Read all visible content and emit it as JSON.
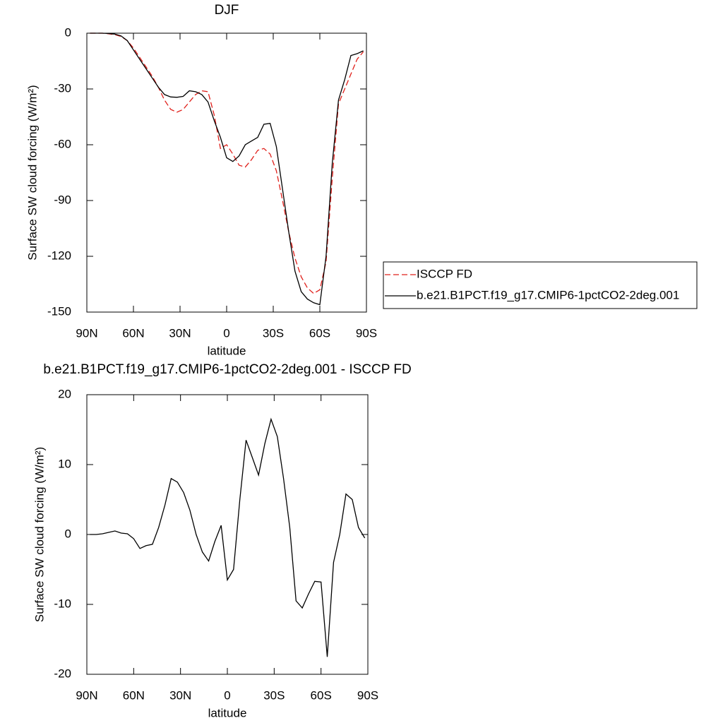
{
  "chart_data": [
    {
      "type": "line",
      "title": "DJF",
      "xlabel": "latitude",
      "ylabel": "Surface SW cloud forcing (W/m²)",
      "x": [
        88,
        84,
        80,
        76,
        72,
        68,
        64,
        60,
        56,
        52,
        48,
        44,
        40,
        36,
        32,
        28,
        24,
        20,
        16,
        12,
        8,
        4,
        0,
        -4,
        -8,
        -12,
        -16,
        -20,
        -24,
        -28,
        -32,
        -36,
        -40,
        -44,
        -48,
        -52,
        -56,
        -60,
        -64,
        -68,
        -72,
        -76,
        -80,
        -84,
        -88
      ],
      "xlim": [
        90,
        -90
      ],
      "xticks": [
        {
          "value": 90,
          "label": "90N"
        },
        {
          "value": 60,
          "label": "60N"
        },
        {
          "value": 30,
          "label": "30N"
        },
        0,
        {
          "value": -30,
          "label": "30S"
        },
        {
          "value": -60,
          "label": "60S"
        },
        {
          "value": -90,
          "label": "90S"
        }
      ],
      "ylim": [
        -150,
        0
      ],
      "yticks": [
        0,
        -30,
        -60,
        -90,
        -120,
        -150
      ],
      "legend": "right",
      "series": [
        {
          "name": "ISCCP FD",
          "color": "#e0201b",
          "dashed": true,
          "values": [
            0,
            0,
            0,
            -0.3,
            -0.8,
            -1.8,
            -4,
            -8,
            -13,
            -18,
            -23,
            -29,
            -36,
            -41,
            -42.5,
            -41,
            -37,
            -33,
            -31,
            -31.5,
            -44,
            -62,
            -60,
            -65,
            -71,
            -72,
            -68,
            -63,
            -62,
            -65,
            -74,
            -90,
            -107,
            -121,
            -131,
            -137,
            -140,
            -138,
            -123,
            -78,
            -38,
            -30,
            -22,
            -14,
            -10
          ]
        },
        {
          "name": "b.e21.B1PCT.f19_g17.CMIP6-1pctCO2-2deg.001",
          "color": "#000000",
          "dashed": false,
          "values": [
            0,
            0,
            0,
            -0.2,
            -0.5,
            -1.5,
            -4,
            -9,
            -14,
            -19,
            -24,
            -29,
            -33,
            -34.3,
            -34.5,
            -34,
            -31,
            -31.5,
            -33,
            -37,
            -47,
            -56,
            -67,
            -69,
            -66,
            -60,
            -58,
            -56,
            -49,
            -48.5,
            -61,
            -84,
            -107,
            -128,
            -139,
            -143,
            -145,
            -146,
            -120,
            -70,
            -36,
            -25,
            -12,
            -11,
            -9.5
          ]
        }
      ]
    },
    {
      "type": "line",
      "title": "b.e21.B1PCT.f19_g17.CMIP6-1pctCO2-2deg.001 - ISCCP FD",
      "xlabel": "latitude",
      "ylabel": "Surface SW cloud forcing (W/m²)",
      "x": [
        88,
        84,
        80,
        76,
        72,
        68,
        64,
        60,
        56,
        52,
        48,
        44,
        40,
        36,
        32,
        28,
        24,
        20,
        16,
        12,
        8,
        4,
        0,
        -4,
        -8,
        -12,
        -16,
        -20,
        -24,
        -28,
        -32,
        -36,
        -40,
        -44,
        -48,
        -52,
        -56,
        -60,
        -64,
        -68,
        -72,
        -76,
        -80,
        -84,
        -88
      ],
      "xlim": [
        90,
        -90
      ],
      "xticks": [
        {
          "value": 90,
          "label": "90N"
        },
        {
          "value": 60,
          "label": "60N"
        },
        {
          "value": 30,
          "label": "30N"
        },
        0,
        {
          "value": -30,
          "label": "30S"
        },
        {
          "value": -60,
          "label": "60S"
        },
        {
          "value": -90,
          "label": "90S"
        }
      ],
      "ylim": [
        -20,
        20
      ],
      "yticks": [
        20,
        10,
        0,
        -10,
        -20
      ],
      "series": [
        {
          "color": "#000000",
          "dashed": false,
          "values": [
            0,
            0,
            0.1,
            0.3,
            0.5,
            0.2,
            0.1,
            -0.6,
            -2,
            -1.6,
            -1.4,
            1,
            4.2,
            8,
            7.5,
            6,
            3.5,
            0,
            -2.5,
            -3.8,
            -1,
            1.3,
            -6.5,
            -5,
            5,
            13.5,
            11,
            8.5,
            13,
            16.5,
            14,
            8,
            1,
            -9.5,
            -10.5,
            -8.5,
            -6.7,
            -6.8,
            -17.5,
            -4,
            0,
            5.8,
            5,
            1,
            -0.5
          ]
        }
      ]
    }
  ]
}
